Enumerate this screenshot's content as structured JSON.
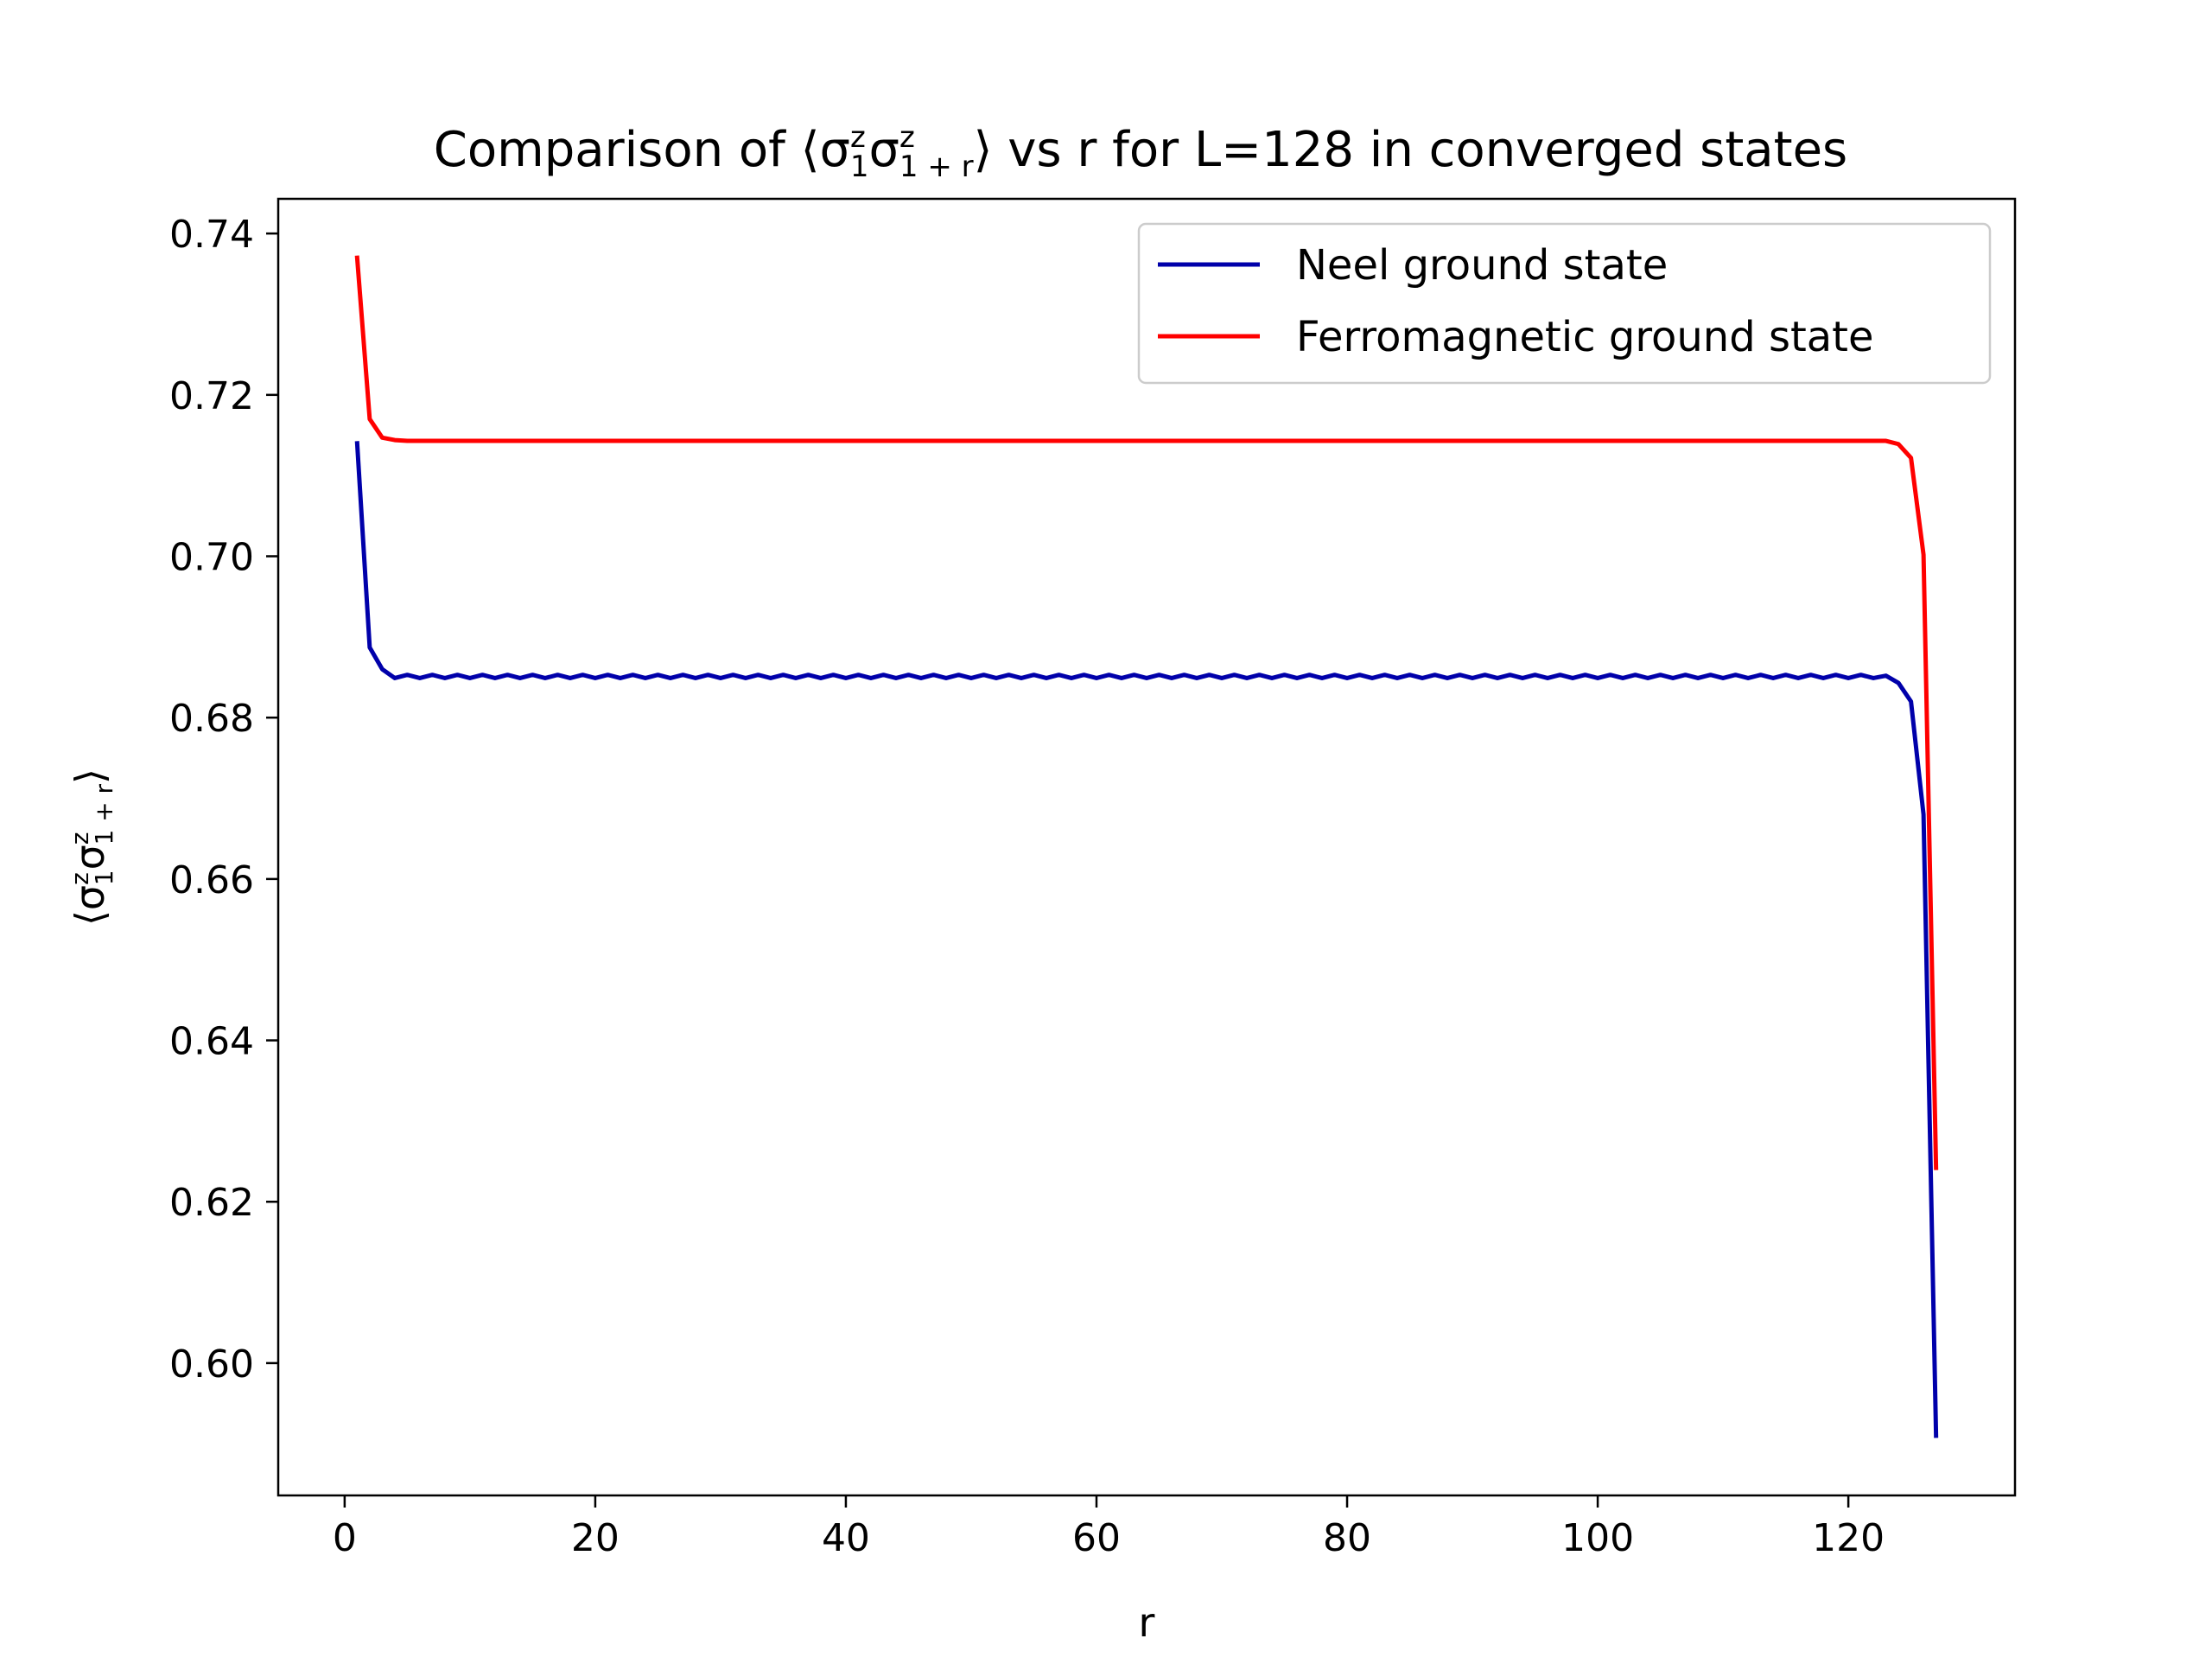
{
  "chart_data": {
    "type": "line",
    "title": {
      "prefix": "Comparison of ⟨σ",
      "sup1": "z",
      "sub1": "1",
      "mid": "σ",
      "sup2": "z",
      "sub2": "1 + r",
      "suffix": "⟩ vs r for L=128 in converged states"
    },
    "xlabel": "r",
    "ylabel": {
      "prefix": "⟨σ",
      "sup1": "z",
      "sub1": "1",
      "mid": "σ",
      "sup2": "z",
      "sub2": "1 + r",
      "suffix": "⟩"
    },
    "xlim": [
      -5.3,
      133.3
    ],
    "ylim": [
      0.5836,
      0.7443
    ],
    "xticks": [
      0,
      20,
      40,
      60,
      80,
      100,
      120
    ],
    "xtick_labels": [
      "0",
      "20",
      "40",
      "60",
      "80",
      "100",
      "120"
    ],
    "yticks": [
      0.6,
      0.62,
      0.64,
      0.66,
      0.68,
      0.7,
      0.72,
      0.74
    ],
    "ytick_labels": [
      "0.60",
      "0.62",
      "0.64",
      "0.66",
      "0.68",
      "0.70",
      "0.72",
      "0.74"
    ],
    "grid": false,
    "legend_position": "top-right",
    "series": [
      {
        "name": "Neel ground state",
        "color": "#0000aa",
        "x_start": 1,
        "x_end": 127,
        "head": [
          0.714,
          0.6887,
          0.686
        ],
        "plateau": {
          "odd": 0.6853,
          "even": 0.6849
        },
        "tail": [
          [
            123,
            0.6852
          ],
          [
            124,
            0.6843
          ],
          [
            125,
            0.682
          ],
          [
            126,
            0.668
          ],
          [
            127,
            0.591
          ]
        ]
      },
      {
        "name": "Ferromagnetic ground state",
        "color": "#ff0000",
        "x_start": 1,
        "x_end": 127,
        "head": [
          0.737,
          0.717,
          0.7147,
          0.7144
        ],
        "plateau": {
          "odd": 0.7143,
          "even": 0.7143
        },
        "tail": [
          [
            123,
            0.7143
          ],
          [
            124,
            0.7139
          ],
          [
            125,
            0.7122
          ],
          [
            126,
            0.7002
          ],
          [
            127,
            0.6242
          ]
        ]
      }
    ]
  }
}
